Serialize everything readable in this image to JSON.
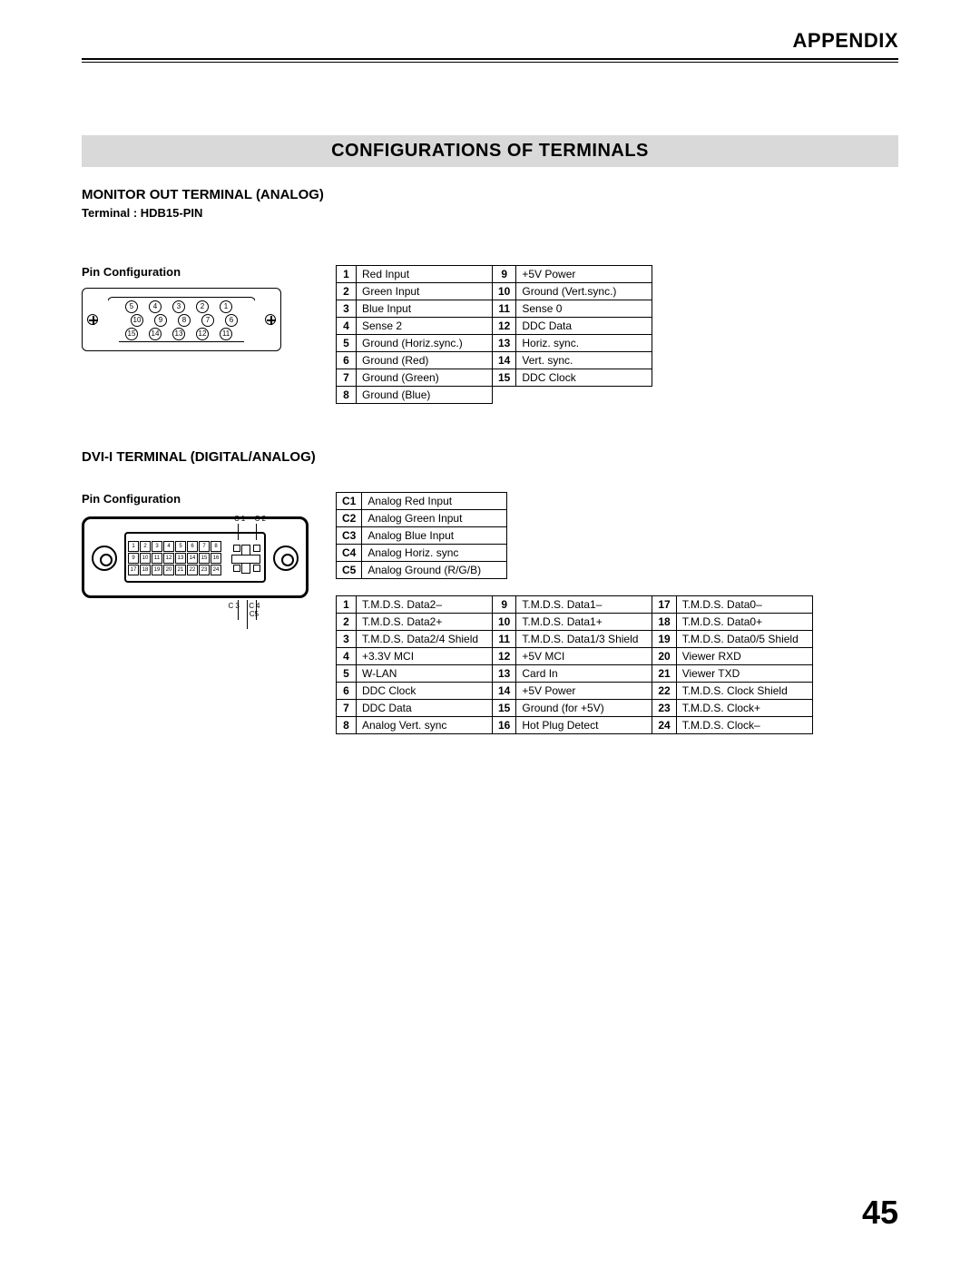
{
  "header": {
    "title": "APPENDIX"
  },
  "banner": "CONFIGURATIONS OF TERMINALS",
  "monitor": {
    "heading": "MONITOR OUT TERMINAL (ANALOG)",
    "terminal": "Terminal : HDB15-PIN",
    "pinconf": "Pin Configuration",
    "pins": [
      [
        "1",
        "Red Input",
        "9",
        "+5V Power"
      ],
      [
        "2",
        "Green Input",
        "10",
        "Ground (Vert.sync.)"
      ],
      [
        "3",
        "Blue Input",
        "11",
        "Sense 0"
      ],
      [
        "4",
        "Sense 2",
        "12",
        "DDC Data"
      ],
      [
        "5",
        "Ground (Horiz.sync.)",
        "13",
        "Horiz. sync."
      ],
      [
        "6",
        "Ground (Red)",
        "14",
        "Vert. sync."
      ],
      [
        "7",
        "Ground (Green)",
        "15",
        "DDC Clock"
      ],
      [
        "8",
        "Ground (Blue)",
        "",
        ""
      ]
    ]
  },
  "dvi": {
    "heading": "DVI-I TERMINAL (DIGITAL/ANALOG)",
    "pinconf": "Pin Configuration",
    "cpins": [
      [
        "C1",
        "Analog Red Input"
      ],
      [
        "C2",
        "Analog Green Input"
      ],
      [
        "C3",
        "Analog Blue Input"
      ],
      [
        "C4",
        "Analog Horiz. sync"
      ],
      [
        "C5",
        "Analog Ground (R/G/B)"
      ]
    ],
    "pins": [
      [
        "1",
        "T.M.D.S. Data2–",
        "9",
        "T.M.D.S. Data1–",
        "17",
        "T.M.D.S. Data0–"
      ],
      [
        "2",
        "T.M.D.S. Data2+",
        "10",
        "T.M.D.S. Data1+",
        "18",
        "T.M.D.S. Data0+"
      ],
      [
        "3",
        "T.M.D.S. Data2/4 Shield",
        "11",
        "T.M.D.S. Data1/3 Shield",
        "19",
        "T.M.D.S. Data0/5 Shield"
      ],
      [
        "4",
        "+3.3V MCI",
        "12",
        "+5V MCI",
        "20",
        "Viewer RXD"
      ],
      [
        "5",
        "W-LAN",
        "13",
        "Card In",
        "21",
        "Viewer TXD"
      ],
      [
        "6",
        "DDC Clock",
        "14",
        "+5V Power",
        "22",
        "T.M.D.S. Clock Shield"
      ],
      [
        "7",
        "DDC Data",
        "15",
        "Ground (for +5V)",
        "23",
        "T.M.D.S. Clock+"
      ],
      [
        "8",
        "Analog Vert. sync",
        "16",
        "Hot Plug Detect",
        "24",
        "T.M.D.S. Clock–"
      ]
    ]
  },
  "pagenum": "45",
  "hdb15_pins_r1": [
    "5",
    "4",
    "3",
    "2",
    "1"
  ],
  "hdb15_pins_r2": [
    "10",
    "9",
    "8",
    "7",
    "6"
  ],
  "hdb15_pins_r3": [
    "15",
    "14",
    "13",
    "12",
    "11"
  ]
}
